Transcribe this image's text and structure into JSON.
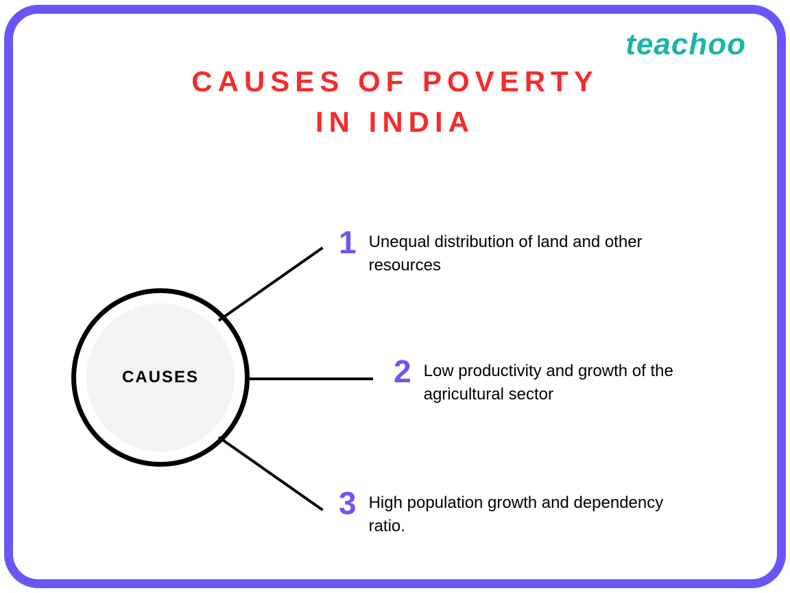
{
  "logo": {
    "text": "teachoo",
    "color": "#1bb5a7"
  },
  "title": {
    "line1": "CAUSES OF POVERTY",
    "line2": "IN INDIA",
    "color": "#f22d2d",
    "fontsize": 42,
    "letter_spacing": 8
  },
  "center_node": {
    "label": "CAUSES",
    "outer_border_color": "#000000",
    "outer_border_width": 7,
    "inner_fill": "#f3f3f3",
    "text_color": "#000000"
  },
  "frame": {
    "border_color": "#6a56f5",
    "border_width": 13,
    "border_radius": 50,
    "background": "#ffffff"
  },
  "causes": [
    {
      "number": "1",
      "text": " Unequal distribution of land and other resources"
    },
    {
      "number": "2",
      "text": "Low productivity and growth of the agricultural sector"
    },
    {
      "number": "3",
      "text": " High population growth and dependency ratio."
    }
  ],
  "number_style": {
    "color": "#6a56f5",
    "fontsize": 46,
    "weight": 900
  },
  "cause_text_style": {
    "color": "#000000",
    "fontsize": 24
  },
  "connector_style": {
    "color": "#000000",
    "width": 4
  }
}
